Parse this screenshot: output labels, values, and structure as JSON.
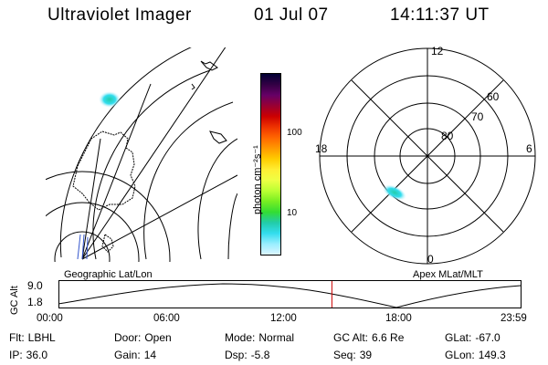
{
  "header": {
    "title": "Ultraviolet Imager",
    "date": "01 Jul 07",
    "time": "14:11:37 UT"
  },
  "colorbar": {
    "unit_label": "photon cm⁻²s⁻¹",
    "ticks": [
      "100",
      "10"
    ],
    "colors": [
      "#000033",
      "#330044",
      "#660066",
      "#990033",
      "#cc0000",
      "#ee3300",
      "#ff6600",
      "#ff9900",
      "#ffcc00",
      "#ffee33",
      "#eeff44",
      "#bbff33",
      "#77ee22",
      "#33dd33",
      "#22ccaa",
      "#33ddee",
      "#99eeff",
      "#ddf5ff"
    ]
  },
  "polar": {
    "mlt_labels": {
      "top": "12",
      "left": "18",
      "right": "6",
      "bottom": "0"
    },
    "lat_labels": [
      "60",
      "70",
      "80"
    ]
  },
  "timeline": {
    "y_axis_label": "GC Alt",
    "y_ticks": [
      "9.0",
      "1.8"
    ],
    "left_caption": "Geographic Lat/Lon",
    "right_caption": "Apex MLat/MLT",
    "x_ticks": [
      "00:00",
      "06:00",
      "12:00",
      "18:00",
      "23:59"
    ],
    "current_marker_hours": 14.19,
    "marker_color": "#cc0000"
  },
  "status": {
    "flt": {
      "label": "Flt:",
      "value": "LBHL"
    },
    "door": {
      "label": "Door:",
      "value": "Open"
    },
    "mode": {
      "label": "Mode:",
      "value": "Normal"
    },
    "gc_alt": {
      "label": "GC Alt:",
      "value": "6.6 Re"
    },
    "glat": {
      "label": "GLat:",
      "value": "-67.0"
    },
    "ip": {
      "label": "IP:",
      "value": "36.0"
    },
    "gain": {
      "label": "Gain:",
      "value": "14"
    },
    "dsp": {
      "label": "Dsp:",
      "value": "-5.8"
    },
    "seq": {
      "label": "Seq:",
      "value": "39"
    },
    "glon": {
      "label": "GLon:",
      "value": "149.3"
    }
  }
}
